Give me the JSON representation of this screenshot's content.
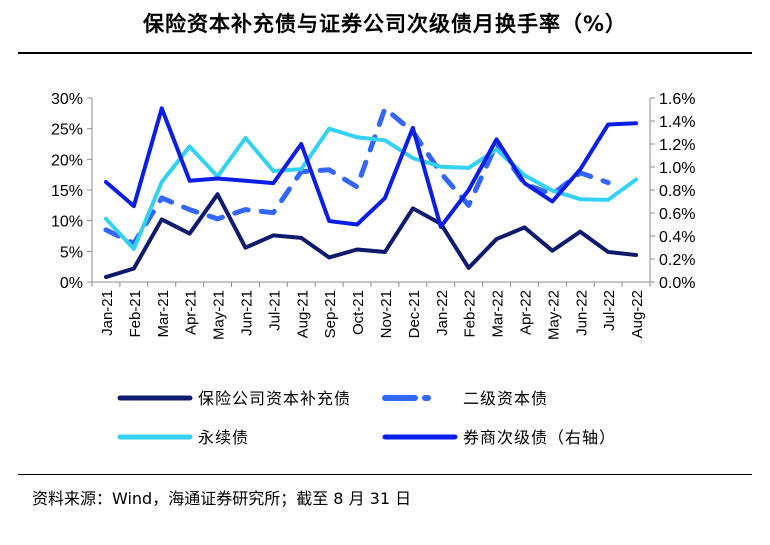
{
  "title": "保险资本补充债与证券公司次级债月换手率（%）",
  "source": "资料来源：Wind，海通证券研究所；截至 8 月 31 日",
  "colors": {
    "insurance": "#0d1a6e",
    "subordinated": "#3366ff",
    "perpetual": "#33d1f2",
    "securities": "#0a1ee6"
  },
  "chart_data": {
    "type": "line",
    "categories": [
      "Jan-21",
      "Feb-21",
      "Mar-21",
      "Apr-21",
      "May-21",
      "Jun-21",
      "Jul-21",
      "Aug-21",
      "Sep-21",
      "Oct-21",
      "Nov-21",
      "Dec-21",
      "Jan-22",
      "Feb-22",
      "Mar-22",
      "Apr-22",
      "May-22",
      "Jun-22",
      "Jul-22",
      "Aug-22"
    ],
    "left_axis": {
      "ylim": [
        0,
        30
      ],
      "ticks": [
        "0%",
        "5%",
        "10%",
        "15%",
        "20%",
        "25%",
        "30%"
      ]
    },
    "right_axis": {
      "ylim": [
        0,
        1.6
      ],
      "ticks": [
        "0.0%",
        "0.2%",
        "0.4%",
        "0.6%",
        "0.8%",
        "1.0%",
        "1.2%",
        "1.4%",
        "1.6%"
      ]
    },
    "grid": false,
    "legend_position": "bottom",
    "series": [
      {
        "name": "保险公司资本补充债",
        "axis": "left",
        "style": "solid",
        "color_key": "insurance",
        "values": [
          0.8,
          2.2,
          10.2,
          7.9,
          14.3,
          5.6,
          7.6,
          7.2,
          4.0,
          5.3,
          4.9,
          12.0,
          9.5,
          2.3,
          7.0,
          8.9,
          5.1,
          8.2,
          4.9,
          4.4
        ]
      },
      {
        "name": "二级资本债",
        "axis": "left",
        "style": "dashed",
        "color_key": "subordinated",
        "values": [
          8.5,
          6.3,
          13.7,
          11.8,
          10.3,
          11.8,
          11.3,
          18.0,
          18.3,
          15.5,
          28.3,
          24.5,
          17.8,
          12.5,
          22.5,
          16.0,
          14.3,
          17.8,
          16.2,
          null
        ]
      },
      {
        "name": "永续债",
        "axis": "left",
        "style": "solid",
        "color_key": "perpetual",
        "values": [
          10.3,
          5.4,
          16.3,
          22.1,
          17.2,
          23.5,
          18.1,
          18.4,
          25.0,
          23.6,
          23.1,
          20.2,
          18.8,
          18.6,
          21.6,
          17.4,
          14.9,
          13.5,
          13.4,
          16.7
        ]
      },
      {
        "name": "券商次级债（右轴）",
        "axis": "right",
        "style": "solid",
        "color_key": "securities",
        "values": [
          0.87,
          0.66,
          1.51,
          0.88,
          0.9,
          0.88,
          0.86,
          1.2,
          0.53,
          0.5,
          0.73,
          1.34,
          0.48,
          0.8,
          1.24,
          0.86,
          0.7,
          0.98,
          1.37,
          1.38
        ]
      }
    ]
  }
}
